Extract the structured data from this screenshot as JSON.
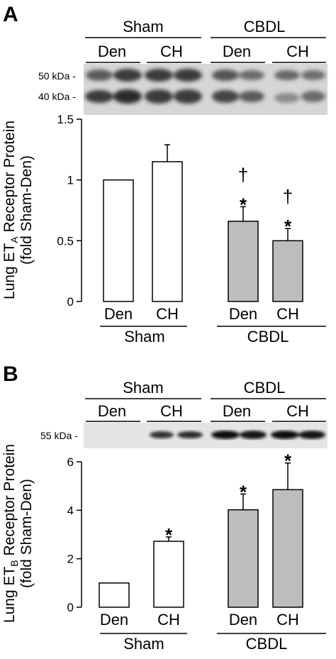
{
  "figure": {
    "panels": [
      {
        "letter": "A",
        "groups": [
          "Sham",
          "CBDL"
        ],
        "lanes": [
          "Den",
          "CH",
          "Den",
          "CH"
        ],
        "markers": [
          "50 kDa -",
          "40 kDa -"
        ],
        "y_label_line1": "Lung ET",
        "y_label_sub": "A",
        "y_label_rest": " Receptor Protein",
        "y_label_line2": "(fold Sham-Den)"
      },
      {
        "letter": "B",
        "groups": [
          "Sham",
          "CBDL"
        ],
        "lanes": [
          "Den",
          "CH",
          "Den",
          "CH"
        ],
        "markers": [
          "55 kDa -"
        ],
        "y_label_line1": "Lung ET",
        "y_label_sub": "B",
        "y_label_rest": " Receptor Protein",
        "y_label_line2": "(fold Sham-Den)"
      }
    ]
  },
  "chart_data": [
    {
      "type": "bar",
      "categories": [
        "Den",
        "CH",
        "Den",
        "CH"
      ],
      "groups": [
        {
          "name": "Sham",
          "categories": [
            0,
            1
          ]
        },
        {
          "name": "CBDL",
          "categories": [
            2,
            3
          ]
        }
      ],
      "values": [
        1.0,
        1.15,
        0.66,
        0.5
      ],
      "errors": [
        0,
        0.14,
        0.12,
        0.1
      ],
      "bar_colors": [
        "#ffffff",
        "#ffffff",
        "#bdbdbd",
        "#bdbdbd"
      ],
      "annotations": [
        [
          "",
          ""
        ],
        [
          "",
          ""
        ],
        [
          "*",
          "†"
        ],
        [
          "*",
          "†"
        ]
      ],
      "ylim": [
        0,
        1.5
      ],
      "yticks": [
        0,
        0.5,
        1,
        1.5
      ],
      "ytick_labels": [
        "0",
        "0.5",
        "1",
        "1.5"
      ],
      "ylabel": "Lung ETA Receptor Protein (fold Sham-Den)"
    },
    {
      "type": "bar",
      "categories": [
        "Den",
        "CH",
        "Den",
        "CH"
      ],
      "groups": [
        {
          "name": "Sham",
          "categories": [
            0,
            1
          ]
        },
        {
          "name": "CBDL",
          "categories": [
            2,
            3
          ]
        }
      ],
      "values": [
        1.0,
        2.72,
        4.02,
        4.85
      ],
      "errors": [
        0,
        0.18,
        0.65,
        1.1
      ],
      "bar_colors": [
        "#ffffff",
        "#ffffff",
        "#bdbdbd",
        "#bdbdbd"
      ],
      "annotations": [
        [
          ""
        ],
        [
          "*"
        ],
        [
          "*"
        ],
        [
          "*"
        ]
      ],
      "ylim": [
        0,
        6
      ],
      "yticks": [
        0,
        2,
        4,
        6
      ],
      "ytick_labels": [
        "0",
        "2",
        "4",
        "6"
      ],
      "ylabel": "Lung ETB Receptor Protein (fold Sham-Den)"
    }
  ]
}
